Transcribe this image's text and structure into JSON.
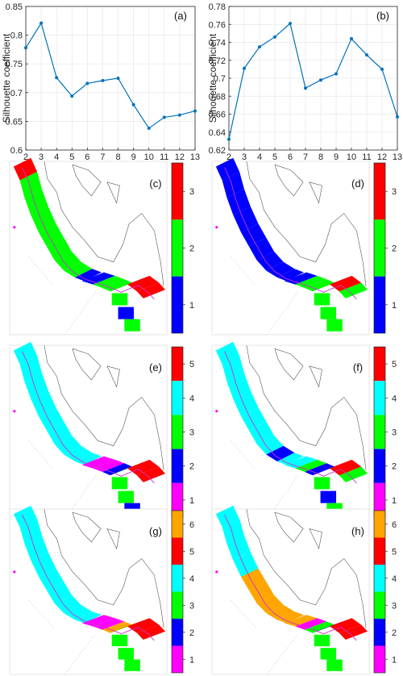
{
  "chart_data": [
    {
      "type": "line",
      "panel_label": "(a)",
      "xlabel": "Number of clusters",
      "ylabel": "Silhouette coefficient",
      "x": [
        2,
        3,
        4,
        5,
        6,
        7,
        8,
        9,
        10,
        11,
        12,
        13
      ],
      "series": [
        {
          "values": [
            0.778,
            0.821,
            0.726,
            0.694,
            0.716,
            0.721,
            0.725,
            0.679,
            0.638,
            0.657,
            0.661,
            0.668
          ]
        }
      ],
      "xlim": [
        2,
        13
      ],
      "ylim": [
        0.6,
        0.85
      ],
      "yticks": [
        "0.6",
        "0.65",
        "0.7",
        "0.75",
        "0.8",
        "0.85"
      ],
      "xticks": [
        "2",
        "3",
        "4",
        "5",
        "6",
        "7",
        "8",
        "9",
        "10",
        "11",
        "12",
        "13"
      ],
      "grid": true,
      "color": "#0072BD"
    },
    {
      "type": "line",
      "panel_label": "(b)",
      "xlabel": "Number of clusters",
      "ylabel": "Silhouette coefficient",
      "x": [
        2,
        3,
        4,
        5,
        6,
        7,
        8,
        9,
        10,
        11,
        12,
        13
      ],
      "series": [
        {
          "values": [
            0.632,
            0.711,
            0.735,
            0.746,
            0.761,
            0.689,
            0.698,
            0.705,
            0.744,
            0.726,
            0.71,
            0.657
          ]
        }
      ],
      "xlim": [
        2,
        13
      ],
      "ylim": [
        0.62,
        0.78
      ],
      "yticks": [
        "0.62",
        "0.64",
        "0.66",
        "0.68",
        "0.7",
        "0.72",
        "0.74",
        "0.76",
        "0.78"
      ],
      "xticks": [
        "2",
        "3",
        "4",
        "5",
        "6",
        "7",
        "8",
        "9",
        "10",
        "11",
        "12",
        "13"
      ],
      "grid": true,
      "color": "#0072BD"
    }
  ],
  "maps": [
    {
      "label": "(c)",
      "n": 3,
      "colors": [
        "#0000ff",
        "#00ff00",
        "#ff0000"
      ],
      "segments": [
        3,
        2,
        2,
        2,
        2,
        2,
        2,
        2,
        1,
        1,
        2,
        2,
        2,
        3,
        3,
        3
      ],
      "tail": [
        2,
        1,
        2
      ]
    },
    {
      "label": "(d)",
      "n": 3,
      "colors": [
        "#0000ff",
        "#00ff00",
        "#ff0000"
      ],
      "segments": [
        1,
        1,
        1,
        1,
        1,
        1,
        1,
        1,
        1,
        1,
        2,
        2,
        2,
        3,
        3,
        2
      ],
      "tail": [
        2,
        2,
        2
      ]
    },
    {
      "label": "(e)",
      "n": 5,
      "colors": [
        "#ff00ff",
        "#0000ff",
        "#00ff00",
        "#00ffff",
        "#ff0000"
      ],
      "segments": [
        4,
        4,
        4,
        4,
        4,
        4,
        4,
        4,
        4,
        1,
        1,
        2,
        3,
        5,
        5,
        5
      ],
      "tail": [
        3,
        3,
        2
      ]
    },
    {
      "label": "(f)",
      "n": 5,
      "colors": [
        "#ff00ff",
        "#0000ff",
        "#00ff00",
        "#00ffff",
        "#ff0000"
      ],
      "segments": [
        4,
        4,
        4,
        4,
        4,
        4,
        4,
        2,
        4,
        4,
        3,
        2,
        2,
        5,
        5,
        3
      ],
      "tail": [
        3,
        2,
        3
      ]
    },
    {
      "label": "(g)",
      "n": 6,
      "colors": [
        "#ff00ff",
        "#0000ff",
        "#00ff00",
        "#00ffff",
        "#ff0000",
        "#ffa500"
      ],
      "segments": [
        4,
        4,
        4,
        4,
        4,
        4,
        4,
        4,
        4,
        1,
        1,
        6,
        3,
        5,
        5,
        5
      ],
      "tail": [
        3,
        3,
        3
      ]
    },
    {
      "label": "(h)",
      "n": 6,
      "colors": [
        "#ff00ff",
        "#0000ff",
        "#00ff00",
        "#00ffff",
        "#ff0000",
        "#ffa500"
      ],
      "segments": [
        4,
        4,
        4,
        4,
        6,
        6,
        6,
        6,
        6,
        6,
        1,
        3,
        2,
        5,
        5,
        5
      ],
      "tail": [
        3,
        3,
        3
      ]
    }
  ]
}
